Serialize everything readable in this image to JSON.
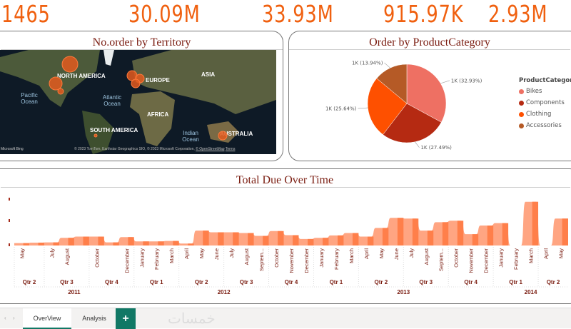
{
  "kpis": [
    "1465",
    "30.09M",
    "33.93M",
    "915.97K",
    "2.93M"
  ],
  "map_card": {
    "title": "No.order by Territory",
    "continents": [
      "NORTH AMERICA",
      "EUROPE",
      "ASIA",
      "AFRICA",
      "SOUTH AMERICA",
      "AUSTRALIA"
    ],
    "oceans": [
      "Pacific Ocean",
      "Atlantic Ocean",
      "Indian Ocean"
    ],
    "attribution": "© 2023 TomTom, Earthstar Geographics SIO, © 2023 Microsoft Corporation,",
    "osm_link": "© OpenStreetMap",
    "terms_link": "Terms",
    "bing": "Microsoft Bing"
  },
  "pie_card": {
    "title": "Order by ProductCategory",
    "chart_data": {
      "type": "pie",
      "legend_title": "ProductCategory",
      "legend_position": "right",
      "slices": [
        {
          "name": "Bikes",
          "percent": 32.93,
          "label": "1K (32.93%)",
          "color": "#ee7063"
        },
        {
          "name": "Components",
          "percent": 27.49,
          "label": "1K (27.49%)",
          "color": "#b52a12"
        },
        {
          "name": "Clothing",
          "percent": 25.64,
          "label": "1K (25.64%)",
          "color": "#fe5000"
        },
        {
          "name": "Accessories",
          "percent": 13.94,
          "label": "1K (13.94%)",
          "color": "#b55a26"
        }
      ]
    }
  },
  "line_card": {
    "title": "Total Due Over Time",
    "chart_data": {
      "type": "area",
      "color": "#ff7f4a",
      "months": [
        {
          "year": 2011,
          "qtr": "Qtr 2",
          "label": "May",
          "v": 10
        },
        {
          "year": 2011,
          "qtr": "Qtr 2",
          "label": "",
          "v": 12
        },
        {
          "year": 2011,
          "qtr": "Qtr 3",
          "label": "July",
          "v": 13
        },
        {
          "year": 2011,
          "qtr": "Qtr 3",
          "label": "August",
          "v": 32
        },
        {
          "year": 2011,
          "qtr": "Qtr 3",
          "label": "",
          "v": 37
        },
        {
          "year": 2011,
          "qtr": "Qtr 4",
          "label": "October",
          "v": 37
        },
        {
          "year": 2011,
          "qtr": "Qtr 4",
          "label": "",
          "v": 13
        },
        {
          "year": 2011,
          "qtr": "Qtr 4",
          "label": "December",
          "v": 35
        },
        {
          "year": 2012,
          "qtr": "Qtr 1",
          "label": "January",
          "v": 17
        },
        {
          "year": 2012,
          "qtr": "Qtr 1",
          "label": "February",
          "v": 17
        },
        {
          "year": 2012,
          "qtr": "Qtr 1",
          "label": "March",
          "v": 19
        },
        {
          "year": 2012,
          "qtr": "Qtr 2",
          "label": "April",
          "v": 8
        },
        {
          "year": 2012,
          "qtr": "Qtr 2",
          "label": "May",
          "v": 62
        },
        {
          "year": 2012,
          "qtr": "Qtr 2",
          "label": "June",
          "v": 55
        },
        {
          "year": 2012,
          "qtr": "Qtr 3",
          "label": "July",
          "v": 55
        },
        {
          "year": 2012,
          "qtr": "Qtr 3",
          "label": "August",
          "v": 52
        },
        {
          "year": 2012,
          "qtr": "Qtr 3",
          "label": "Septem...",
          "v": 40
        },
        {
          "year": 2012,
          "qtr": "Qtr 4",
          "label": "October",
          "v": 60
        },
        {
          "year": 2012,
          "qtr": "Qtr 4",
          "label": "November",
          "v": 43
        },
        {
          "year": 2012,
          "qtr": "Qtr 4",
          "label": "December",
          "v": 27
        },
        {
          "year": 2013,
          "qtr": "Qtr 1",
          "label": "January",
          "v": 32
        },
        {
          "year": 2013,
          "qtr": "Qtr 1",
          "label": "February",
          "v": 42
        },
        {
          "year": 2013,
          "qtr": "Qtr 1",
          "label": "March",
          "v": 52
        },
        {
          "year": 2013,
          "qtr": "Qtr 2",
          "label": "April",
          "v": 37
        },
        {
          "year": 2013,
          "qtr": "Qtr 2",
          "label": "May",
          "v": 73
        },
        {
          "year": 2013,
          "qtr": "Qtr 2",
          "label": "June",
          "v": 115
        },
        {
          "year": 2013,
          "qtr": "Qtr 3",
          "label": "July",
          "v": 112
        },
        {
          "year": 2013,
          "qtr": "Qtr 3",
          "label": "August",
          "v": 62
        },
        {
          "year": 2013,
          "qtr": "Qtr 3",
          "label": "Septem...",
          "v": 97
        },
        {
          "year": 2013,
          "qtr": "Qtr 4",
          "label": "October",
          "v": 103
        },
        {
          "year": 2013,
          "qtr": "Qtr 4",
          "label": "November",
          "v": 47
        },
        {
          "year": 2013,
          "qtr": "Qtr 4",
          "label": "December",
          "v": 83
        },
        {
          "year": 2014,
          "qtr": "Qtr 1",
          "label": "January",
          "v": 93
        },
        {
          "year": 2014,
          "qtr": "Qtr 1",
          "label": "February",
          "v": 0
        },
        {
          "year": 2014,
          "qtr": "Qtr 1",
          "label": "March",
          "v": 182
        },
        {
          "year": 2014,
          "qtr": "Qtr 2",
          "label": "April",
          "v": 0
        },
        {
          "year": 2014,
          "qtr": "Qtr 2",
          "label": "May",
          "v": 112
        }
      ],
      "y_axis_labels_visible": false
    }
  },
  "tabs": {
    "items": [
      "OverView",
      "Analysis"
    ],
    "active": "OverView",
    "add": "+",
    "watermark": "خمسات"
  }
}
